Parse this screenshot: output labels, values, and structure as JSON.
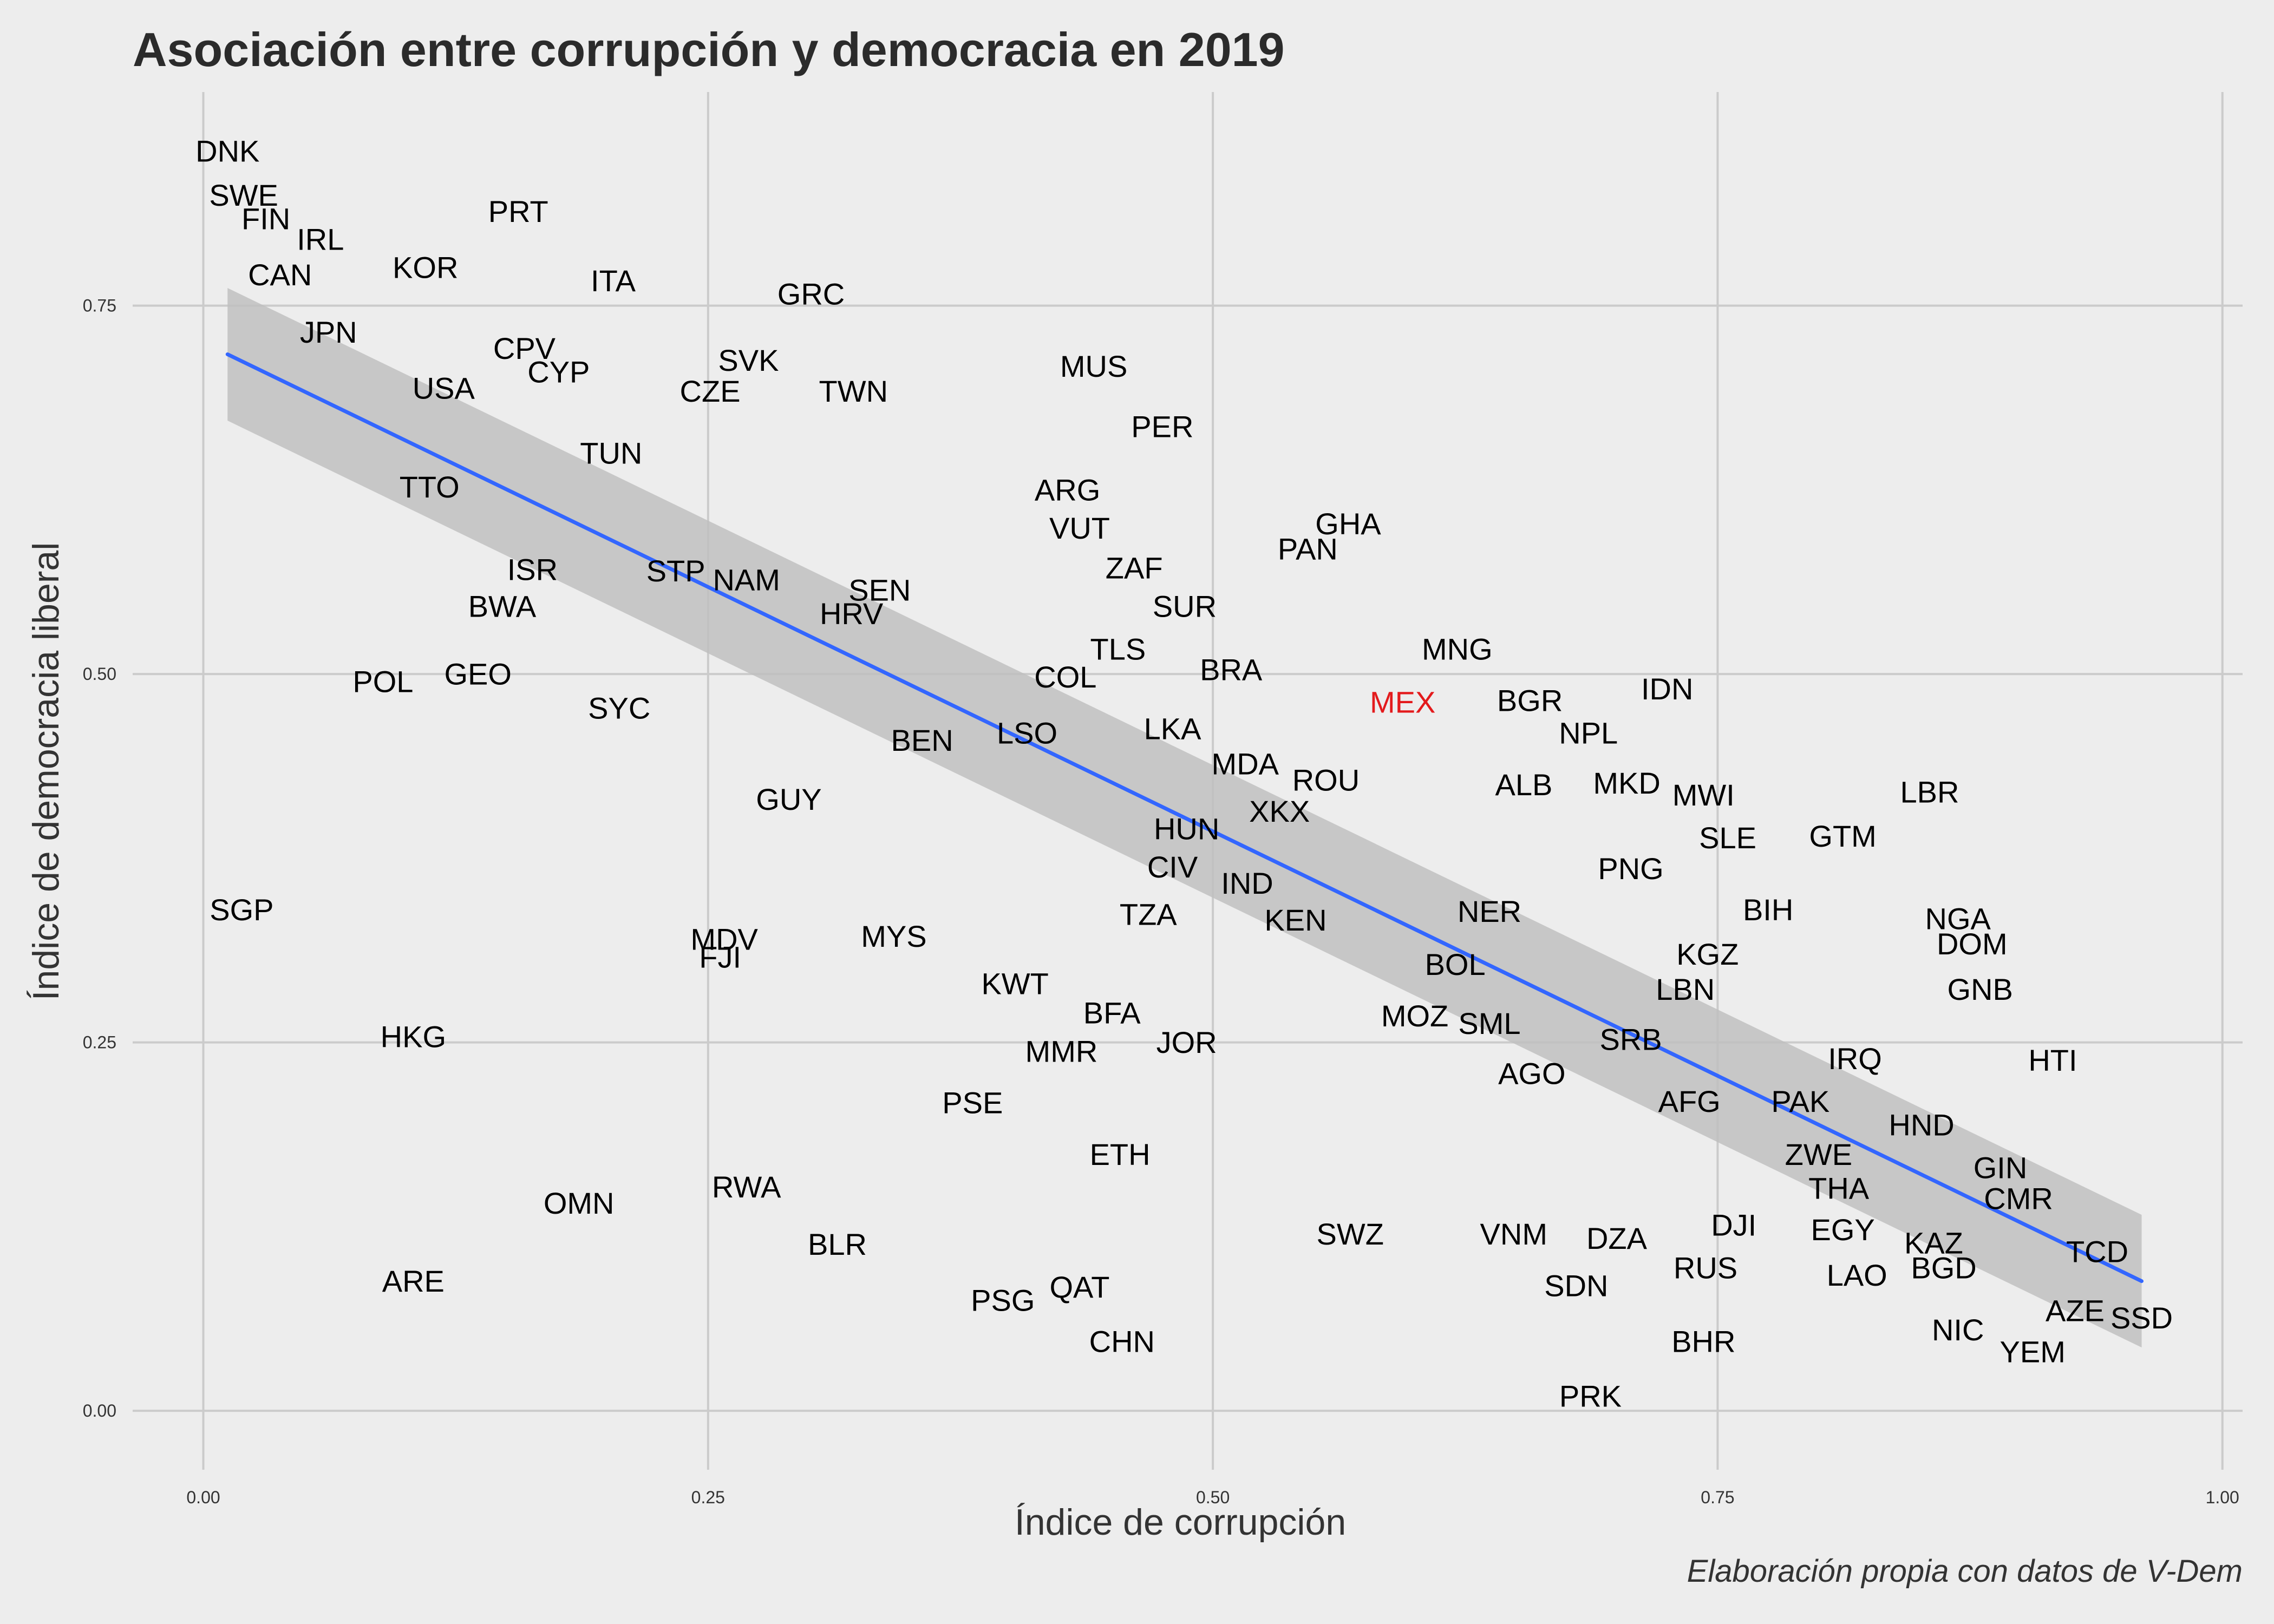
{
  "chart_data": {
    "type": "scatter",
    "title": "Asociación entre corrupción y democracia en 2019",
    "xlabel": "Índice de corrupción",
    "ylabel": "Índice de democracia liberal",
    "caption": "Elaboración propia con datos de V-Dem",
    "xlim": [
      -0.035,
      1.01
    ],
    "ylim": [
      -0.04,
      0.895
    ],
    "x_ticks": [
      0.0,
      0.25,
      0.5,
      0.75,
      1.0
    ],
    "x_tick_labels": [
      "0.00",
      "0.25",
      "0.50",
      "0.75",
      "1.00"
    ],
    "y_ticks": [
      0.0,
      0.25,
      0.5,
      0.75
    ],
    "y_tick_labels": [
      "0.00",
      "0.25",
      "0.50",
      "0.75"
    ],
    "grid": true,
    "colors": {
      "background": "#ededed",
      "grid": "#cbcbcb",
      "points": "#000000",
      "highlight": "#e31a1c",
      "fit_line": "#3366ff",
      "ribbon": "#bfbfbf"
    },
    "highlight": "MEX",
    "fit": {
      "x_range": [
        0.012,
        0.96
      ],
      "line_y": [
        0.717,
        0.088
      ],
      "ribbon_lower": [
        0.672,
        0.043
      ],
      "ribbon_upper": [
        0.762,
        0.133
      ]
    },
    "points": [
      {
        "label": "DNK",
        "x": 0.012,
        "y": 0.855
      },
      {
        "label": "SWE",
        "x": 0.02,
        "y": 0.825
      },
      {
        "label": "FIN",
        "x": 0.031,
        "y": 0.809
      },
      {
        "label": "IRL",
        "x": 0.058,
        "y": 0.795
      },
      {
        "label": "CAN",
        "x": 0.038,
        "y": 0.771
      },
      {
        "label": "PRT",
        "x": 0.156,
        "y": 0.814
      },
      {
        "label": "KOR",
        "x": 0.11,
        "y": 0.776
      },
      {
        "label": "ITA",
        "x": 0.203,
        "y": 0.767
      },
      {
        "label": "GRC",
        "x": 0.301,
        "y": 0.758
      },
      {
        "label": "JPN",
        "x": 0.062,
        "y": 0.732
      },
      {
        "label": "CPV",
        "x": 0.159,
        "y": 0.721
      },
      {
        "label": "CYP",
        "x": 0.176,
        "y": 0.705
      },
      {
        "label": "USA",
        "x": 0.119,
        "y": 0.694
      },
      {
        "label": "SVK",
        "x": 0.27,
        "y": 0.713
      },
      {
        "label": "CZE",
        "x": 0.251,
        "y": 0.692
      },
      {
        "label": "TWN",
        "x": 0.322,
        "y": 0.692
      },
      {
        "label": "MUS",
        "x": 0.441,
        "y": 0.709
      },
      {
        "label": "PER",
        "x": 0.475,
        "y": 0.668
      },
      {
        "label": "TUN",
        "x": 0.202,
        "y": 0.65
      },
      {
        "label": "TTO",
        "x": 0.112,
        "y": 0.627
      },
      {
        "label": "ARG",
        "x": 0.428,
        "y": 0.625
      },
      {
        "label": "GHA",
        "x": 0.567,
        "y": 0.602
      },
      {
        "label": "VUT",
        "x": 0.434,
        "y": 0.599
      },
      {
        "label": "PAN",
        "x": 0.547,
        "y": 0.585
      },
      {
        "label": "ZAF",
        "x": 0.461,
        "y": 0.572
      },
      {
        "label": "ISR",
        "x": 0.163,
        "y": 0.571
      },
      {
        "label": "STP",
        "x": 0.234,
        "y": 0.57
      },
      {
        "label": "NAM",
        "x": 0.269,
        "y": 0.564
      },
      {
        "label": "SEN",
        "x": 0.335,
        "y": 0.557
      },
      {
        "label": "BWA",
        "x": 0.148,
        "y": 0.546
      },
      {
        "label": "SUR",
        "x": 0.486,
        "y": 0.546
      },
      {
        "label": "HRV",
        "x": 0.321,
        "y": 0.541
      },
      {
        "label": "TLS",
        "x": 0.453,
        "y": 0.517
      },
      {
        "label": "MNG",
        "x": 0.621,
        "y": 0.517
      },
      {
        "label": "BRA",
        "x": 0.509,
        "y": 0.503
      },
      {
        "label": "COL",
        "x": 0.427,
        "y": 0.498
      },
      {
        "label": "POL",
        "x": 0.089,
        "y": 0.495
      },
      {
        "label": "GEO",
        "x": 0.136,
        "y": 0.5
      },
      {
        "label": "IDN",
        "x": 0.725,
        "y": 0.49
      },
      {
        "label": "MEX",
        "x": 0.594,
        "y": 0.481
      },
      {
        "label": "BGR",
        "x": 0.657,
        "y": 0.482
      },
      {
        "label": "SYC",
        "x": 0.206,
        "y": 0.477
      },
      {
        "label": "NPL",
        "x": 0.686,
        "y": 0.46
      },
      {
        "label": "LSO",
        "x": 0.408,
        "y": 0.46
      },
      {
        "label": "LKA",
        "x": 0.48,
        "y": 0.463
      },
      {
        "label": "BEN",
        "x": 0.356,
        "y": 0.455
      },
      {
        "label": "MDA",
        "x": 0.516,
        "y": 0.439
      },
      {
        "label": "ROU",
        "x": 0.556,
        "y": 0.428
      },
      {
        "label": "ALB",
        "x": 0.654,
        "y": 0.425
      },
      {
        "label": "MKD",
        "x": 0.705,
        "y": 0.426
      },
      {
        "label": "MWI",
        "x": 0.743,
        "y": 0.418
      },
      {
        "label": "LBR",
        "x": 0.855,
        "y": 0.42
      },
      {
        "label": "GUY",
        "x": 0.29,
        "y": 0.415
      },
      {
        "label": "XKX",
        "x": 0.533,
        "y": 0.407
      },
      {
        "label": "HUN",
        "x": 0.487,
        "y": 0.395
      },
      {
        "label": "SLE",
        "x": 0.755,
        "y": 0.389
      },
      {
        "label": "GTM",
        "x": 0.812,
        "y": 0.39
      },
      {
        "label": "CIV",
        "x": 0.48,
        "y": 0.369
      },
      {
        "label": "PNG",
        "x": 0.707,
        "y": 0.368
      },
      {
        "label": "IND",
        "x": 0.517,
        "y": 0.358
      },
      {
        "label": "SGP",
        "x": 0.019,
        "y": 0.34
      },
      {
        "label": "BIH",
        "x": 0.775,
        "y": 0.34
      },
      {
        "label": "NER",
        "x": 0.637,
        "y": 0.339
      },
      {
        "label": "TZA",
        "x": 0.468,
        "y": 0.337
      },
      {
        "label": "KEN",
        "x": 0.541,
        "y": 0.333
      },
      {
        "label": "NGA",
        "x": 0.869,
        "y": 0.334
      },
      {
        "label": "MYS",
        "x": 0.342,
        "y": 0.322
      },
      {
        "label": "MDV",
        "x": 0.258,
        "y": 0.32
      },
      {
        "label": "DOM",
        "x": 0.876,
        "y": 0.317
      },
      {
        "label": "FJI",
        "x": 0.256,
        "y": 0.308
      },
      {
        "label": "KGZ",
        "x": 0.745,
        "y": 0.31
      },
      {
        "label": "BOL",
        "x": 0.62,
        "y": 0.303
      },
      {
        "label": "KWT",
        "x": 0.402,
        "y": 0.29
      },
      {
        "label": "LBN",
        "x": 0.734,
        "y": 0.286
      },
      {
        "label": "GNB",
        "x": 0.88,
        "y": 0.286
      },
      {
        "label": "BFA",
        "x": 0.45,
        "y": 0.27
      },
      {
        "label": "MOZ",
        "x": 0.6,
        "y": 0.268
      },
      {
        "label": "SML",
        "x": 0.637,
        "y": 0.263
      },
      {
        "label": "HKG",
        "x": 0.104,
        "y": 0.254
      },
      {
        "label": "SRB",
        "x": 0.707,
        "y": 0.252
      },
      {
        "label": "JOR",
        "x": 0.487,
        "y": 0.25
      },
      {
        "label": "MMR",
        "x": 0.425,
        "y": 0.244
      },
      {
        "label": "IRQ",
        "x": 0.818,
        "y": 0.239
      },
      {
        "label": "HTI",
        "x": 0.916,
        "y": 0.238
      },
      {
        "label": "AGO",
        "x": 0.658,
        "y": 0.229
      },
      {
        "label": "PSE",
        "x": 0.381,
        "y": 0.209
      },
      {
        "label": "AFG",
        "x": 0.736,
        "y": 0.21
      },
      {
        "label": "PAK",
        "x": 0.791,
        "y": 0.21
      },
      {
        "label": "HND",
        "x": 0.851,
        "y": 0.194
      },
      {
        "label": "ETH",
        "x": 0.454,
        "y": 0.174
      },
      {
        "label": "ZWE",
        "x": 0.8,
        "y": 0.174
      },
      {
        "label": "GIN",
        "x": 0.89,
        "y": 0.165
      },
      {
        "label": "THA",
        "x": 0.81,
        "y": 0.151
      },
      {
        "label": "RWA",
        "x": 0.269,
        "y": 0.152
      },
      {
        "label": "CMR",
        "x": 0.899,
        "y": 0.144
      },
      {
        "label": "OMN",
        "x": 0.186,
        "y": 0.141
      },
      {
        "label": "DJI",
        "x": 0.758,
        "y": 0.126
      },
      {
        "label": "SWZ",
        "x": 0.568,
        "y": 0.12
      },
      {
        "label": "VNM",
        "x": 0.649,
        "y": 0.12
      },
      {
        "label": "EGY",
        "x": 0.812,
        "y": 0.123
      },
      {
        "label": "DZA",
        "x": 0.7,
        "y": 0.117
      },
      {
        "label": "BLR",
        "x": 0.314,
        "y": 0.113
      },
      {
        "label": "KAZ",
        "x": 0.857,
        "y": 0.114
      },
      {
        "label": "TCD",
        "x": 0.938,
        "y": 0.108
      },
      {
        "label": "RUS",
        "x": 0.744,
        "y": 0.097
      },
      {
        "label": "BGD",
        "x": 0.862,
        "y": 0.097
      },
      {
        "label": "LAO",
        "x": 0.819,
        "y": 0.092
      },
      {
        "label": "ARE",
        "x": 0.104,
        "y": 0.088
      },
      {
        "label": "QAT",
        "x": 0.434,
        "y": 0.084
      },
      {
        "label": "SDN",
        "x": 0.68,
        "y": 0.085
      },
      {
        "label": "PSG",
        "x": 0.396,
        "y": 0.075
      },
      {
        "label": "AZE",
        "x": 0.927,
        "y": 0.068
      },
      {
        "label": "SSD",
        "x": 0.96,
        "y": 0.063
      },
      {
        "label": "NIC",
        "x": 0.869,
        "y": 0.055
      },
      {
        "label": "CHN",
        "x": 0.455,
        "y": 0.047
      },
      {
        "label": "BHR",
        "x": 0.743,
        "y": 0.047
      },
      {
        "label": "YEM",
        "x": 0.906,
        "y": 0.04
      },
      {
        "label": "PRK",
        "x": 0.687,
        "y": 0.01
      }
    ]
  }
}
